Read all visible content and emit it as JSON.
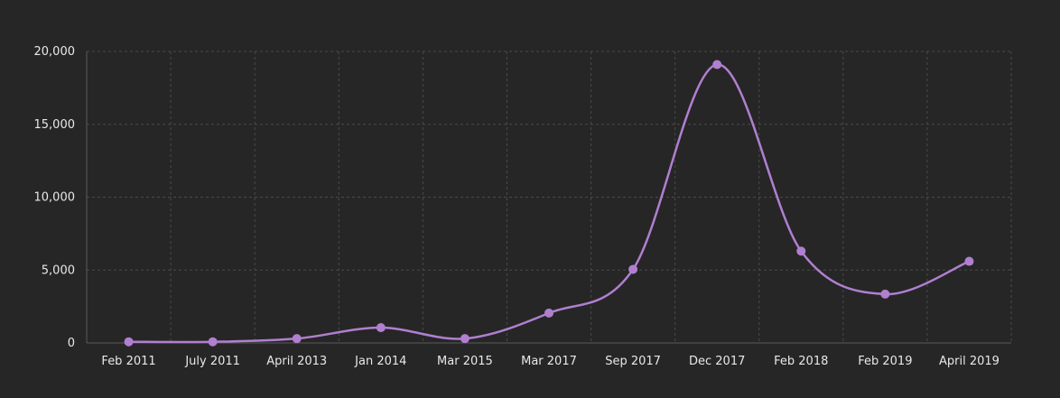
{
  "chart_data": {
    "type": "line",
    "title": "",
    "xlabel": "",
    "ylabel": "",
    "categories": [
      "Feb 2011",
      "July 2011",
      "April 2013",
      "Jan 2014",
      "Mar 2015",
      "Mar 2017",
      "Sep 2017",
      "Dec 2017",
      "Feb 2018",
      "Feb 2019",
      "April 2019"
    ],
    "series": [
      {
        "values": [
          80,
          80,
          300,
          1050,
          300,
          2050,
          5050,
          19100,
          6300,
          3350,
          5600
        ],
        "color": "#b07fd0"
      }
    ],
    "ylim": [
      0,
      20000
    ],
    "yticks": [
      0,
      5000,
      10000,
      15000,
      20000
    ],
    "ytick_labels": [
      "0",
      "5,000",
      "10,000",
      "15,000",
      "20,000"
    ],
    "grid": true,
    "smooth": true,
    "colors": {
      "background": "#262626",
      "grid": "#4a4a4a",
      "text": "#e8e8e8"
    }
  }
}
